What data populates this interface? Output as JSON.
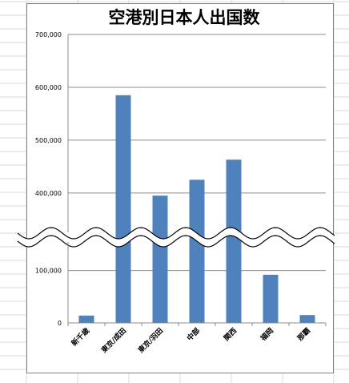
{
  "chart_data": {
    "type": "bar",
    "title": "空港別日本人出国数",
    "categories": [
      "新千歳",
      "東京/成田",
      "東京/羽田",
      "中部",
      "関西",
      "福岡",
      "那覇"
    ],
    "values": [
      14000,
      585000,
      395000,
      425000,
      463000,
      92000,
      15000
    ],
    "axis_break": {
      "lower_max": 150000,
      "upper_min": 330000
    },
    "yticks_lower": [
      {
        "value": 0,
        "label": "0"
      },
      {
        "value": 100000,
        "label": "100,000"
      }
    ],
    "yticks_upper": [
      {
        "value": 400000,
        "label": "400,000"
      },
      {
        "value": 500000,
        "label": "500,000"
      },
      {
        "value": 600000,
        "label": "600,000"
      },
      {
        "value": 700000,
        "label": "700,000"
      }
    ],
    "ylim": [
      0,
      700000
    ],
    "grid": true,
    "legend": "none",
    "xlabel": "",
    "ylabel": "",
    "bar_color": "#4f81bd"
  }
}
